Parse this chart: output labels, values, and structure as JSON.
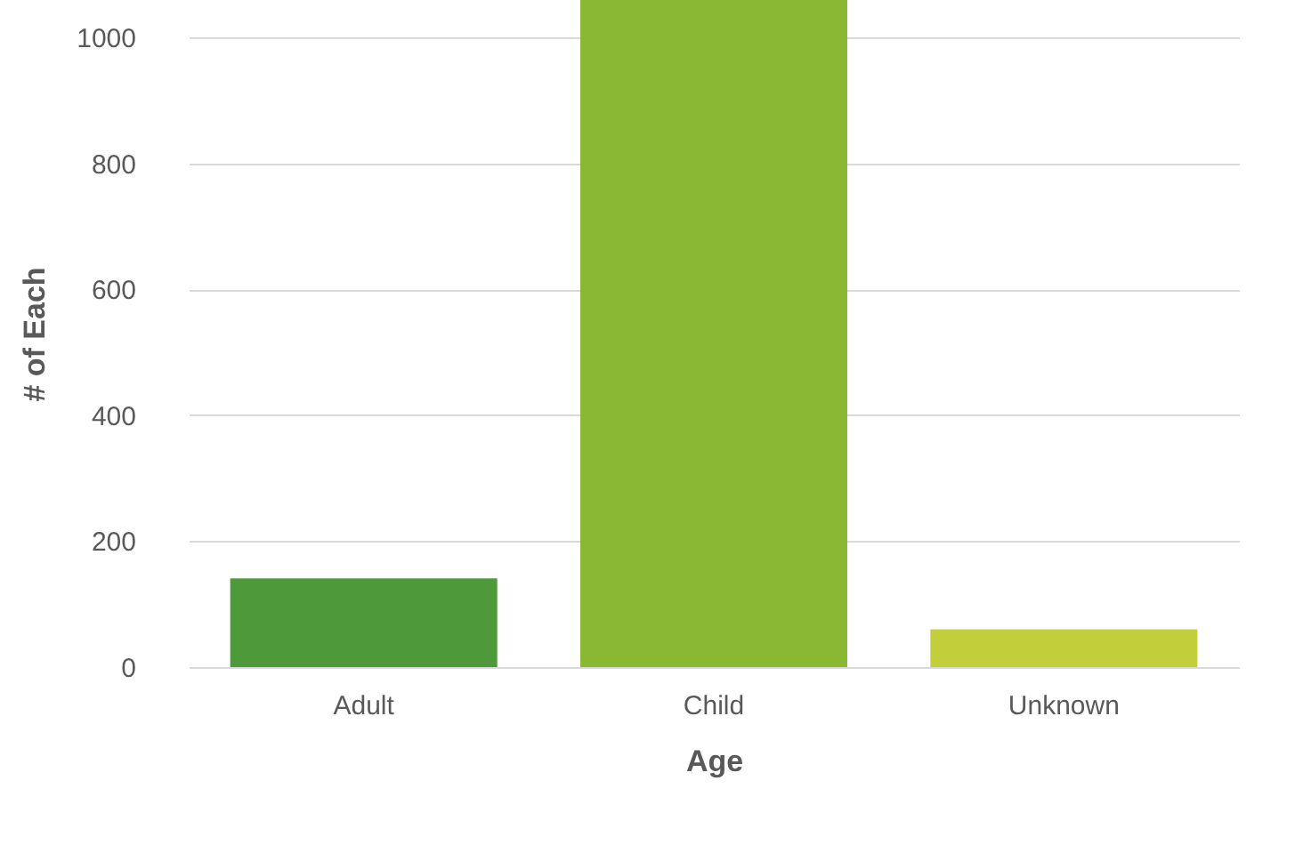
{
  "chart_data": {
    "type": "bar",
    "xlabel": "Age",
    "ylabel": "# of Each",
    "categories": [
      "Adult",
      "Child",
      "Unknown"
    ],
    "values": [
      141,
      1060,
      60
    ],
    "colors": [
      "#4e9a3a",
      "#8ab833",
      "#c2cf3a"
    ],
    "ylim": [
      0,
      1060
    ],
    "yticks": [
      0,
      200,
      400,
      600,
      800,
      1000
    ],
    "grid": "y"
  }
}
